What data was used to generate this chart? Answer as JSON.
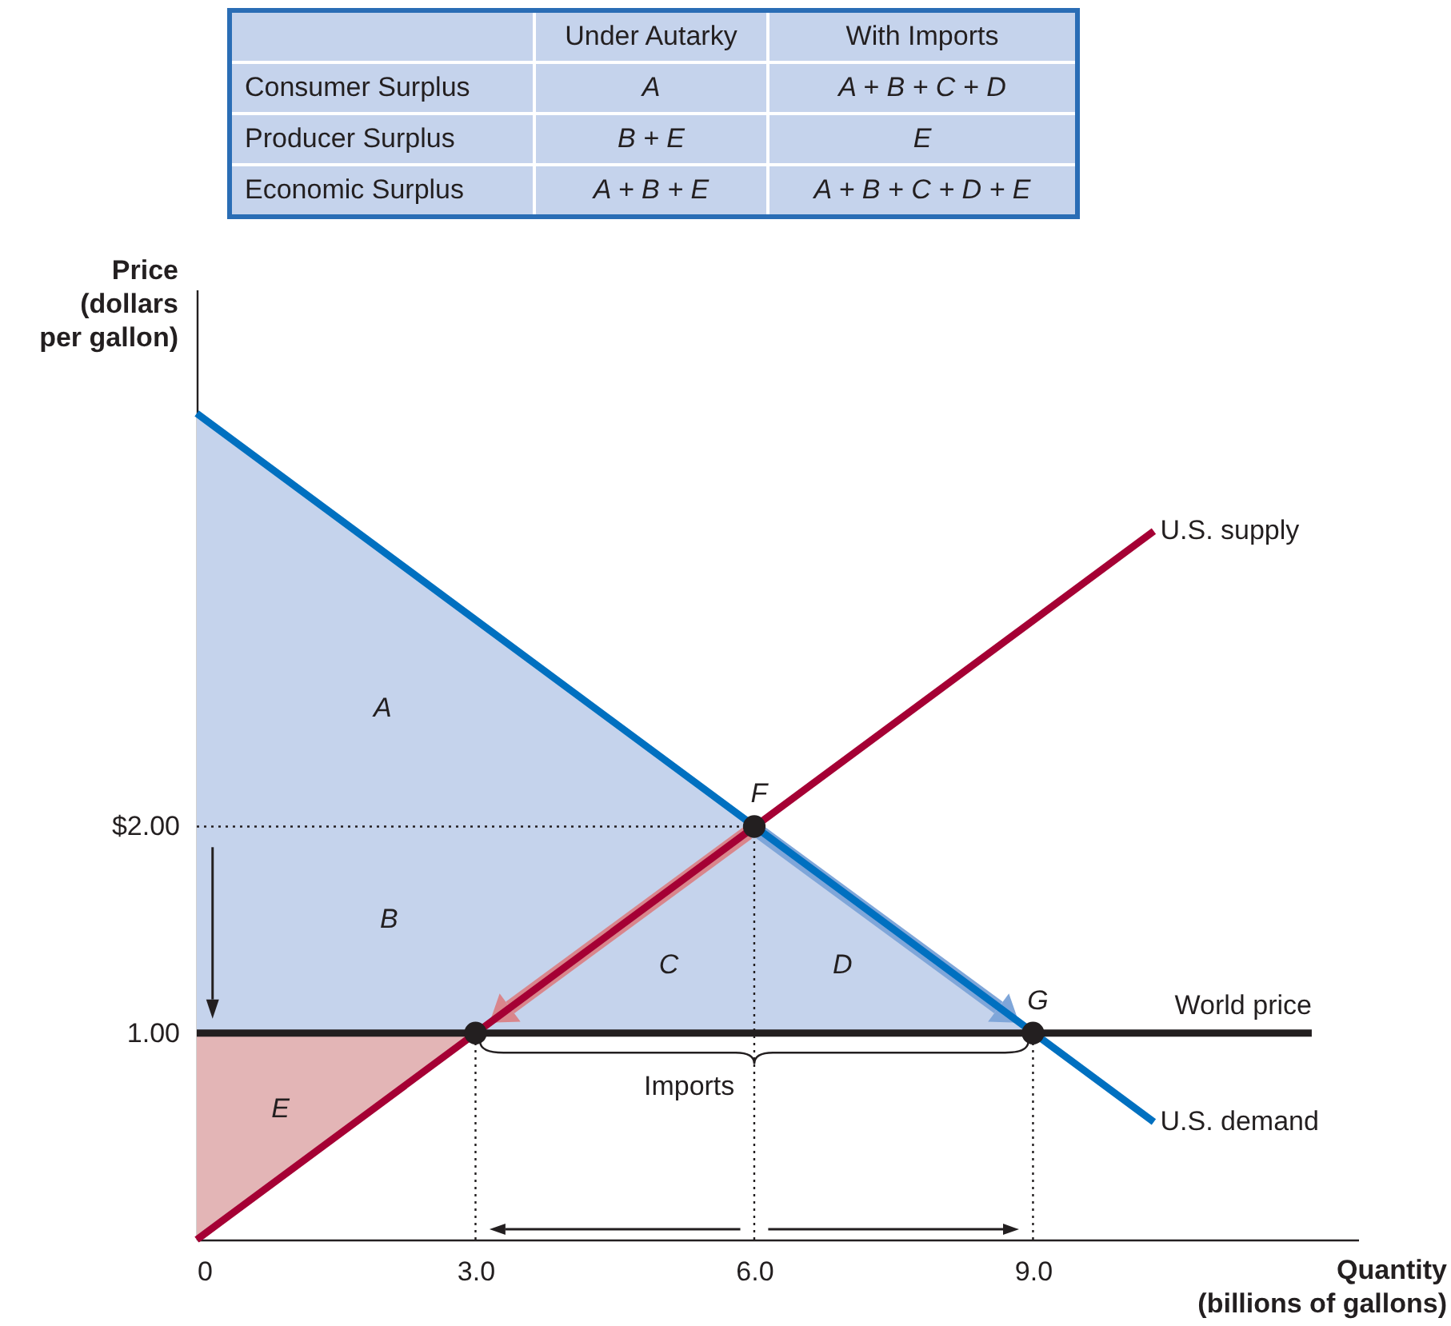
{
  "chart_data": [
    {
      "type": "other",
      "categories": [
        "Under Autarky",
        "With Imports"
      ],
      "y_categories": [
        "Consumer Surplus",
        "Producer Surplus",
        "Economic Surplus"
      ],
      "cell_labels": [
        [
          "A",
          "A + B + C + D"
        ],
        [
          "B + E",
          "E"
        ],
        [
          "A + B + E",
          "A + B + C + D + E"
        ]
      ]
    },
    {
      "type": "line",
      "xlabel": "Quantity\n(billions of gallons)",
      "ylabel": "Price\n(dollars\nper gallon)",
      "xlim": [
        0,
        12.5
      ],
      "ylim": [
        0,
        4.6
      ],
      "xticks": [
        0,
        {
          "value": 3,
          "label": "3.0"
        },
        {
          "value": 6,
          "label": "6.0"
        },
        {
          "value": 9,
          "label": "9.0"
        }
      ],
      "yticks": [
        {
          "value": 1,
          "label": "1.00"
        },
        {
          "value": 2,
          "label": "$2.00"
        }
      ],
      "grid": false,
      "series": [
        {
          "type": "line",
          "color": "#231f20",
          "line_style": "dotted",
          "x": [
            0,
            6
          ],
          "values": [
            2,
            2
          ]
        },
        {
          "type": "line",
          "color": "#231f20",
          "line_style": "dotted",
          "x": [
            3,
            3
          ],
          "values": [
            0,
            1
          ]
        },
        {
          "type": "line",
          "color": "#231f20",
          "line_style": "dotted",
          "x": [
            6,
            6
          ],
          "values": [
            0,
            2
          ]
        },
        {
          "type": "line",
          "color": "#231f20",
          "line_style": "dotted",
          "x": [
            9,
            9
          ],
          "values": [
            0,
            1
          ]
        },
        {
          "type": "line",
          "name": "U.S. supply",
          "color": "#a50034",
          "x": [
            0,
            10.3
          ],
          "values": [
            0,
            3.43
          ]
        },
        {
          "type": "line",
          "name": "U.S. demand",
          "color": "#0070c0",
          "x": [
            0,
            10.3
          ],
          "values": [
            4,
            0.57
          ]
        },
        {
          "type": "line",
          "name": "World price",
          "color": "#231f20",
          "x": [
            0,
            12
          ],
          "values": [
            1,
            1
          ]
        },
        {
          "type": "scatter",
          "color": "#231f20",
          "marker": "circle",
          "x": [
            3,
            6,
            9
          ],
          "values": [
            1,
            2,
            1
          ]
        }
      ],
      "annotations": [
        "A",
        "B",
        "C",
        "D",
        "E",
        {
          "text": "F",
          "x": 6,
          "y": 2
        },
        {
          "text": "G",
          "x": 9,
          "y": 1
        },
        "Imports"
      ]
    }
  ]
}
